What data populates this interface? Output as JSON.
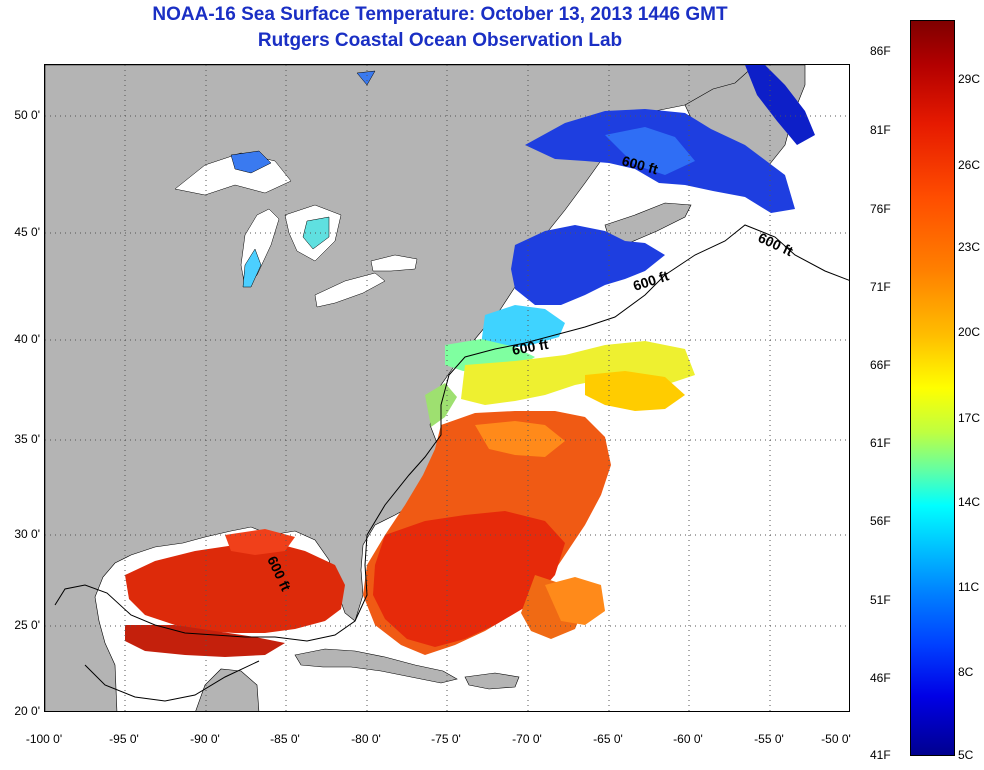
{
  "title": {
    "line1": "NOAA-16 Sea Surface Temperature:  October 13, 2013 1446 GMT",
    "line2": "Rutgers Coastal Ocean Observation Lab"
  },
  "map": {
    "lat_labels": [
      "50 0'",
      "45 0'",
      "40 0'",
      "35 0'",
      "30 0'",
      "25 0'",
      "20 0'"
    ],
    "lon_labels": [
      "-100 0'",
      "-95 0'",
      "-90 0'",
      "-85 0'",
      "-80 0'",
      "-75 0'",
      "-70 0'",
      "-65 0'",
      "-60 0'",
      "-55 0'",
      "-50 0'"
    ],
    "contour_labels": [
      "600 ft",
      "600 ft",
      "600 ft",
      "600 ft",
      "600 ft"
    ],
    "colors": {
      "land": "#b4b4b4",
      "ocean_no_data": "#ffffff",
      "gridline": "#555555"
    }
  },
  "colorbar": {
    "fahrenheit": [
      "86F",
      "81F",
      "76F",
      "71F",
      "66F",
      "61F",
      "56F",
      "51F",
      "46F",
      "41F"
    ],
    "celsius": [
      "29C",
      "26C",
      "23C",
      "20C",
      "17C",
      "14C",
      "11C",
      "8C",
      "5C"
    ]
  }
}
